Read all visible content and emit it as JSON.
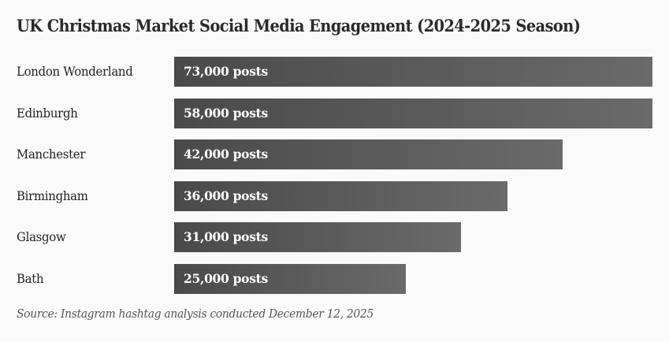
{
  "chart_data": {
    "type": "bar",
    "orientation": "horizontal",
    "title": "UK Christmas Market Social Media Engagement (2024-2025 Season)",
    "xlabel": "",
    "ylabel": "",
    "categories": [
      "London Wonderland",
      "Edinburgh",
      "Manchester",
      "Birmingham",
      "Glasgow",
      "Bath"
    ],
    "values": [
      73000,
      58000,
      42000,
      36000,
      31000,
      25000
    ],
    "value_labels": [
      "73,000 posts",
      "58,000 posts",
      "42,000 posts",
      "36,000 posts",
      "31,000 posts",
      "25,000 posts"
    ],
    "unit": "posts",
    "scale_max": 51700,
    "bar_clamped_to_full": true,
    "grid": false,
    "legend": "none",
    "bar_color_start": "#4a4a4a",
    "bar_color_end": "#6a6a6a",
    "source": "Source: Instagram hashtag analysis conducted December 12, 2025"
  }
}
